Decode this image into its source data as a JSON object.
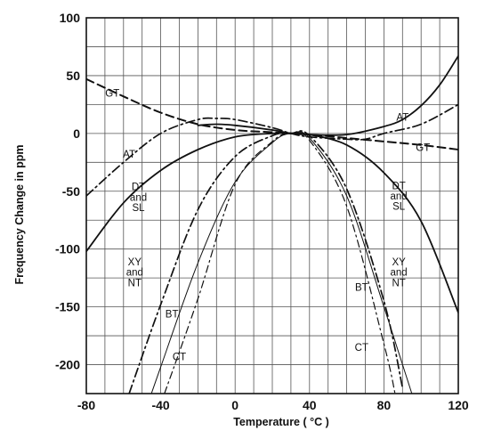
{
  "chart_data": {
    "type": "line",
    "xlabel": "Temperature ( °C )",
    "ylabel": "Frequency Change in ppm",
    "xlim": [
      -80,
      120
    ],
    "ylim": [
      -225,
      100
    ],
    "x_ticks": [
      -80,
      -40,
      0,
      40,
      80,
      120
    ],
    "y_ticks": [
      100,
      50,
      0,
      -50,
      -100,
      -150,
      -200
    ],
    "grid": true,
    "series": [
      {
        "name": "GT",
        "style": "dashed",
        "x": [
          -80,
          -60,
          -40,
          -20,
          0,
          20,
          40,
          60,
          80,
          100,
          120
        ],
        "y": [
          47,
          32,
          18,
          8,
          3,
          1,
          -1,
          -4,
          -7,
          -10,
          -14
        ]
      },
      {
        "name": "AT",
        "style": "dash-dot",
        "x": [
          -80,
          -60,
          -40,
          -20,
          -10,
          0,
          20,
          30,
          40,
          60,
          70,
          80,
          100,
          120
        ],
        "y": [
          -54,
          -25,
          0,
          12,
          13,
          12,
          5,
          0,
          -3,
          -5,
          -5,
          0,
          8,
          25
        ]
      },
      {
        "name": "AT",
        "style": "solid",
        "x": [
          -20,
          -10,
          0,
          20,
          30,
          40,
          60,
          80,
          90,
          100,
          110,
          120
        ],
        "y": [
          7,
          8,
          7,
          3,
          0,
          -1,
          -1,
          6,
          12,
          24,
          42,
          67
        ]
      },
      {
        "name": "DT and SL",
        "style": "solid",
        "x": [
          -80,
          -60,
          -40,
          -20,
          0,
          20,
          30,
          40,
          60,
          80,
          100,
          120
        ],
        "y": [
          -102,
          -60,
          -32,
          -14,
          -3,
          0,
          0,
          -1,
          -10,
          -34,
          -76,
          -155
        ]
      },
      {
        "name": "XY and NT",
        "style": "dash-dot",
        "x": [
          -57,
          -40,
          -20,
          0,
          20,
          30,
          40,
          60,
          80,
          90
        ],
        "y": [
          -225,
          -148,
          -66,
          -20,
          -2,
          0,
          -2,
          -48,
          -145,
          -220
        ]
      },
      {
        "name": "BT",
        "style": "solid-thin",
        "x": [
          -45,
          -40,
          -20,
          0,
          20,
          30,
          40,
          60,
          80,
          95
        ],
        "y": [
          -225,
          -202,
          -112,
          -42,
          -8,
          0,
          -4,
          -54,
          -150,
          -225
        ]
      },
      {
        "name": "CT",
        "style": "dash-dot-thin",
        "x": [
          -38,
          -20,
          0,
          20,
          30,
          40,
          60,
          80,
          86
        ],
        "y": [
          -225,
          -143,
          -44,
          -7,
          0,
          -6,
          -63,
          -182,
          -225
        ]
      }
    ],
    "annotations": [
      {
        "text": "GT",
        "x": -66,
        "y": 35
      },
      {
        "text": "AT",
        "x": -57,
        "y": -18
      },
      {
        "text": "DT",
        "x": -52,
        "y": -46
      },
      {
        "text": "and",
        "x": -52,
        "y": -55
      },
      {
        "text": "SL",
        "x": -52,
        "y": -64
      },
      {
        "text": "XY",
        "x": -54,
        "y": -111
      },
      {
        "text": "and",
        "x": -54,
        "y": -120
      },
      {
        "text": "NT",
        "x": -54,
        "y": -129
      },
      {
        "text": "BT",
        "x": -34,
        "y": -156
      },
      {
        "text": "CT",
        "x": -30,
        "y": -193
      },
      {
        "text": "AT",
        "x": 90,
        "y": 14
      },
      {
        "text": "GT",
        "x": 101,
        "y": -12
      },
      {
        "text": "DT",
        "x": 88,
        "y": -45
      },
      {
        "text": "and",
        "x": 88,
        "y": -54
      },
      {
        "text": "SL",
        "x": 88,
        "y": -63
      },
      {
        "text": "XY",
        "x": 88,
        "y": -111
      },
      {
        "text": "and",
        "x": 88,
        "y": -120
      },
      {
        "text": "NT",
        "x": 88,
        "y": -129
      },
      {
        "text": "BT",
        "x": 68,
        "y": -133
      },
      {
        "text": "CT",
        "x": 68,
        "y": -185
      }
    ]
  }
}
